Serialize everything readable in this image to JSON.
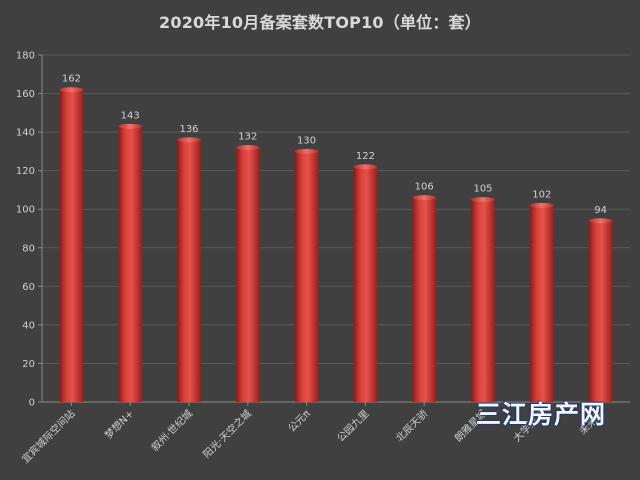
{
  "chart_data": {
    "type": "bar",
    "title": "2020年10月备案套数TOP10（单位：套）",
    "categories": [
      "宜宾城际空间站",
      "梦想N+",
      "叙州·世纪城",
      "阳光·天空之城",
      "公元π",
      "公园九里",
      "北辰天骄",
      "朗雅星城",
      "大学滨湖",
      "未来城"
    ],
    "values": [
      162,
      143,
      136,
      132,
      130,
      122,
      106,
      105,
      102,
      94
    ],
    "xlabel": "",
    "ylabel": "",
    "ylim": [
      0,
      180
    ],
    "yticks": [
      0,
      20,
      40,
      60,
      80,
      100,
      120,
      140,
      160,
      180
    ],
    "grid": true,
    "bar_color": "#c8302b",
    "background": "#404040"
  },
  "watermark": "三江房产网"
}
